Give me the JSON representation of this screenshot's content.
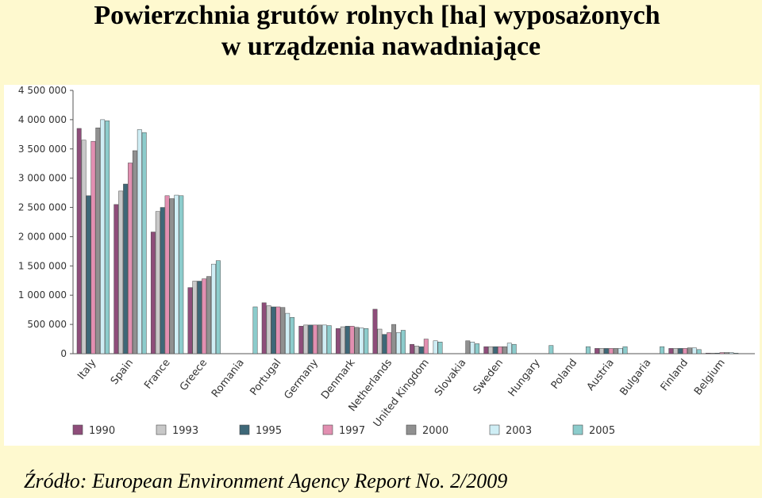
{
  "title_line1": "Powierzchnia grutów rolnych [ha]  wyposażonych",
  "title_line2": "w urządzenia nawadniające",
  "source": "Źródło:  European Environment Agency Report No. 2/2009",
  "chart_data": {
    "type": "bar",
    "categories": [
      "Italy",
      "Spain",
      "France",
      "Greece",
      "Romania",
      "Portugal",
      "Germany",
      "Denmark",
      "Netherlands",
      "United Kingdom",
      "Slovakia",
      "Sweden",
      "Hungary",
      "Poland",
      "Austria",
      "Bulgaria",
      "Finland",
      "Belgium"
    ],
    "series": [
      {
        "name": "1990",
        "color": "#8e4d7a",
        "values": [
          3850000,
          2550000,
          2080000,
          1130000,
          null,
          870000,
          470000,
          430000,
          760000,
          160000,
          null,
          120000,
          null,
          null,
          90000,
          null,
          90000,
          10000
        ]
      },
      {
        "name": "1993",
        "color": "#c8c8c8",
        "values": [
          3650000,
          2780000,
          2430000,
          1240000,
          null,
          820000,
          490000,
          460000,
          420000,
          130000,
          null,
          120000,
          null,
          null,
          90000,
          null,
          90000,
          10000
        ]
      },
      {
        "name": "1995",
        "color": "#3e6878",
        "values": [
          2700000,
          2900000,
          2500000,
          1240000,
          null,
          800000,
          490000,
          470000,
          330000,
          120000,
          null,
          120000,
          null,
          null,
          90000,
          null,
          90000,
          10000
        ]
      },
      {
        "name": "1997",
        "color": "#e28fb1",
        "values": [
          3630000,
          3260000,
          2700000,
          1280000,
          null,
          800000,
          490000,
          470000,
          360000,
          250000,
          null,
          120000,
          null,
          null,
          90000,
          null,
          90000,
          20000
        ]
      },
      {
        "name": "2000",
        "color": "#909090",
        "values": [
          3860000,
          3470000,
          2650000,
          1320000,
          null,
          790000,
          490000,
          450000,
          500000,
          null,
          220000,
          120000,
          null,
          null,
          90000,
          null,
          100000,
          20000
        ]
      },
      {
        "name": "2003",
        "color": "#cfeef5",
        "values": [
          4000000,
          3830000,
          2710000,
          1530000,
          null,
          690000,
          490000,
          440000,
          360000,
          220000,
          200000,
          180000,
          null,
          null,
          90000,
          null,
          100000,
          20000
        ]
      },
      {
        "name": "2005",
        "color": "#8ccccc",
        "values": [
          3980000,
          3780000,
          2700000,
          1590000,
          800000,
          620000,
          480000,
          430000,
          400000,
          200000,
          170000,
          160000,
          140000,
          120000,
          120000,
          120000,
          70000,
          10000
        ]
      }
    ],
    "ylim": [
      0,
      4500000
    ],
    "yticks": [
      0,
      500000,
      1000000,
      1500000,
      2000000,
      2500000,
      3000000,
      3500000,
      4000000,
      4500000
    ],
    "ytick_labels": [
      "0",
      "500 000",
      "1 000 000",
      "1 500 000",
      "2 000 000",
      "2 500 000",
      "3 000 000",
      "3 500 000",
      "4 000 000",
      "4 500 000"
    ],
    "legend_position": "bottom",
    "grid": false
  }
}
